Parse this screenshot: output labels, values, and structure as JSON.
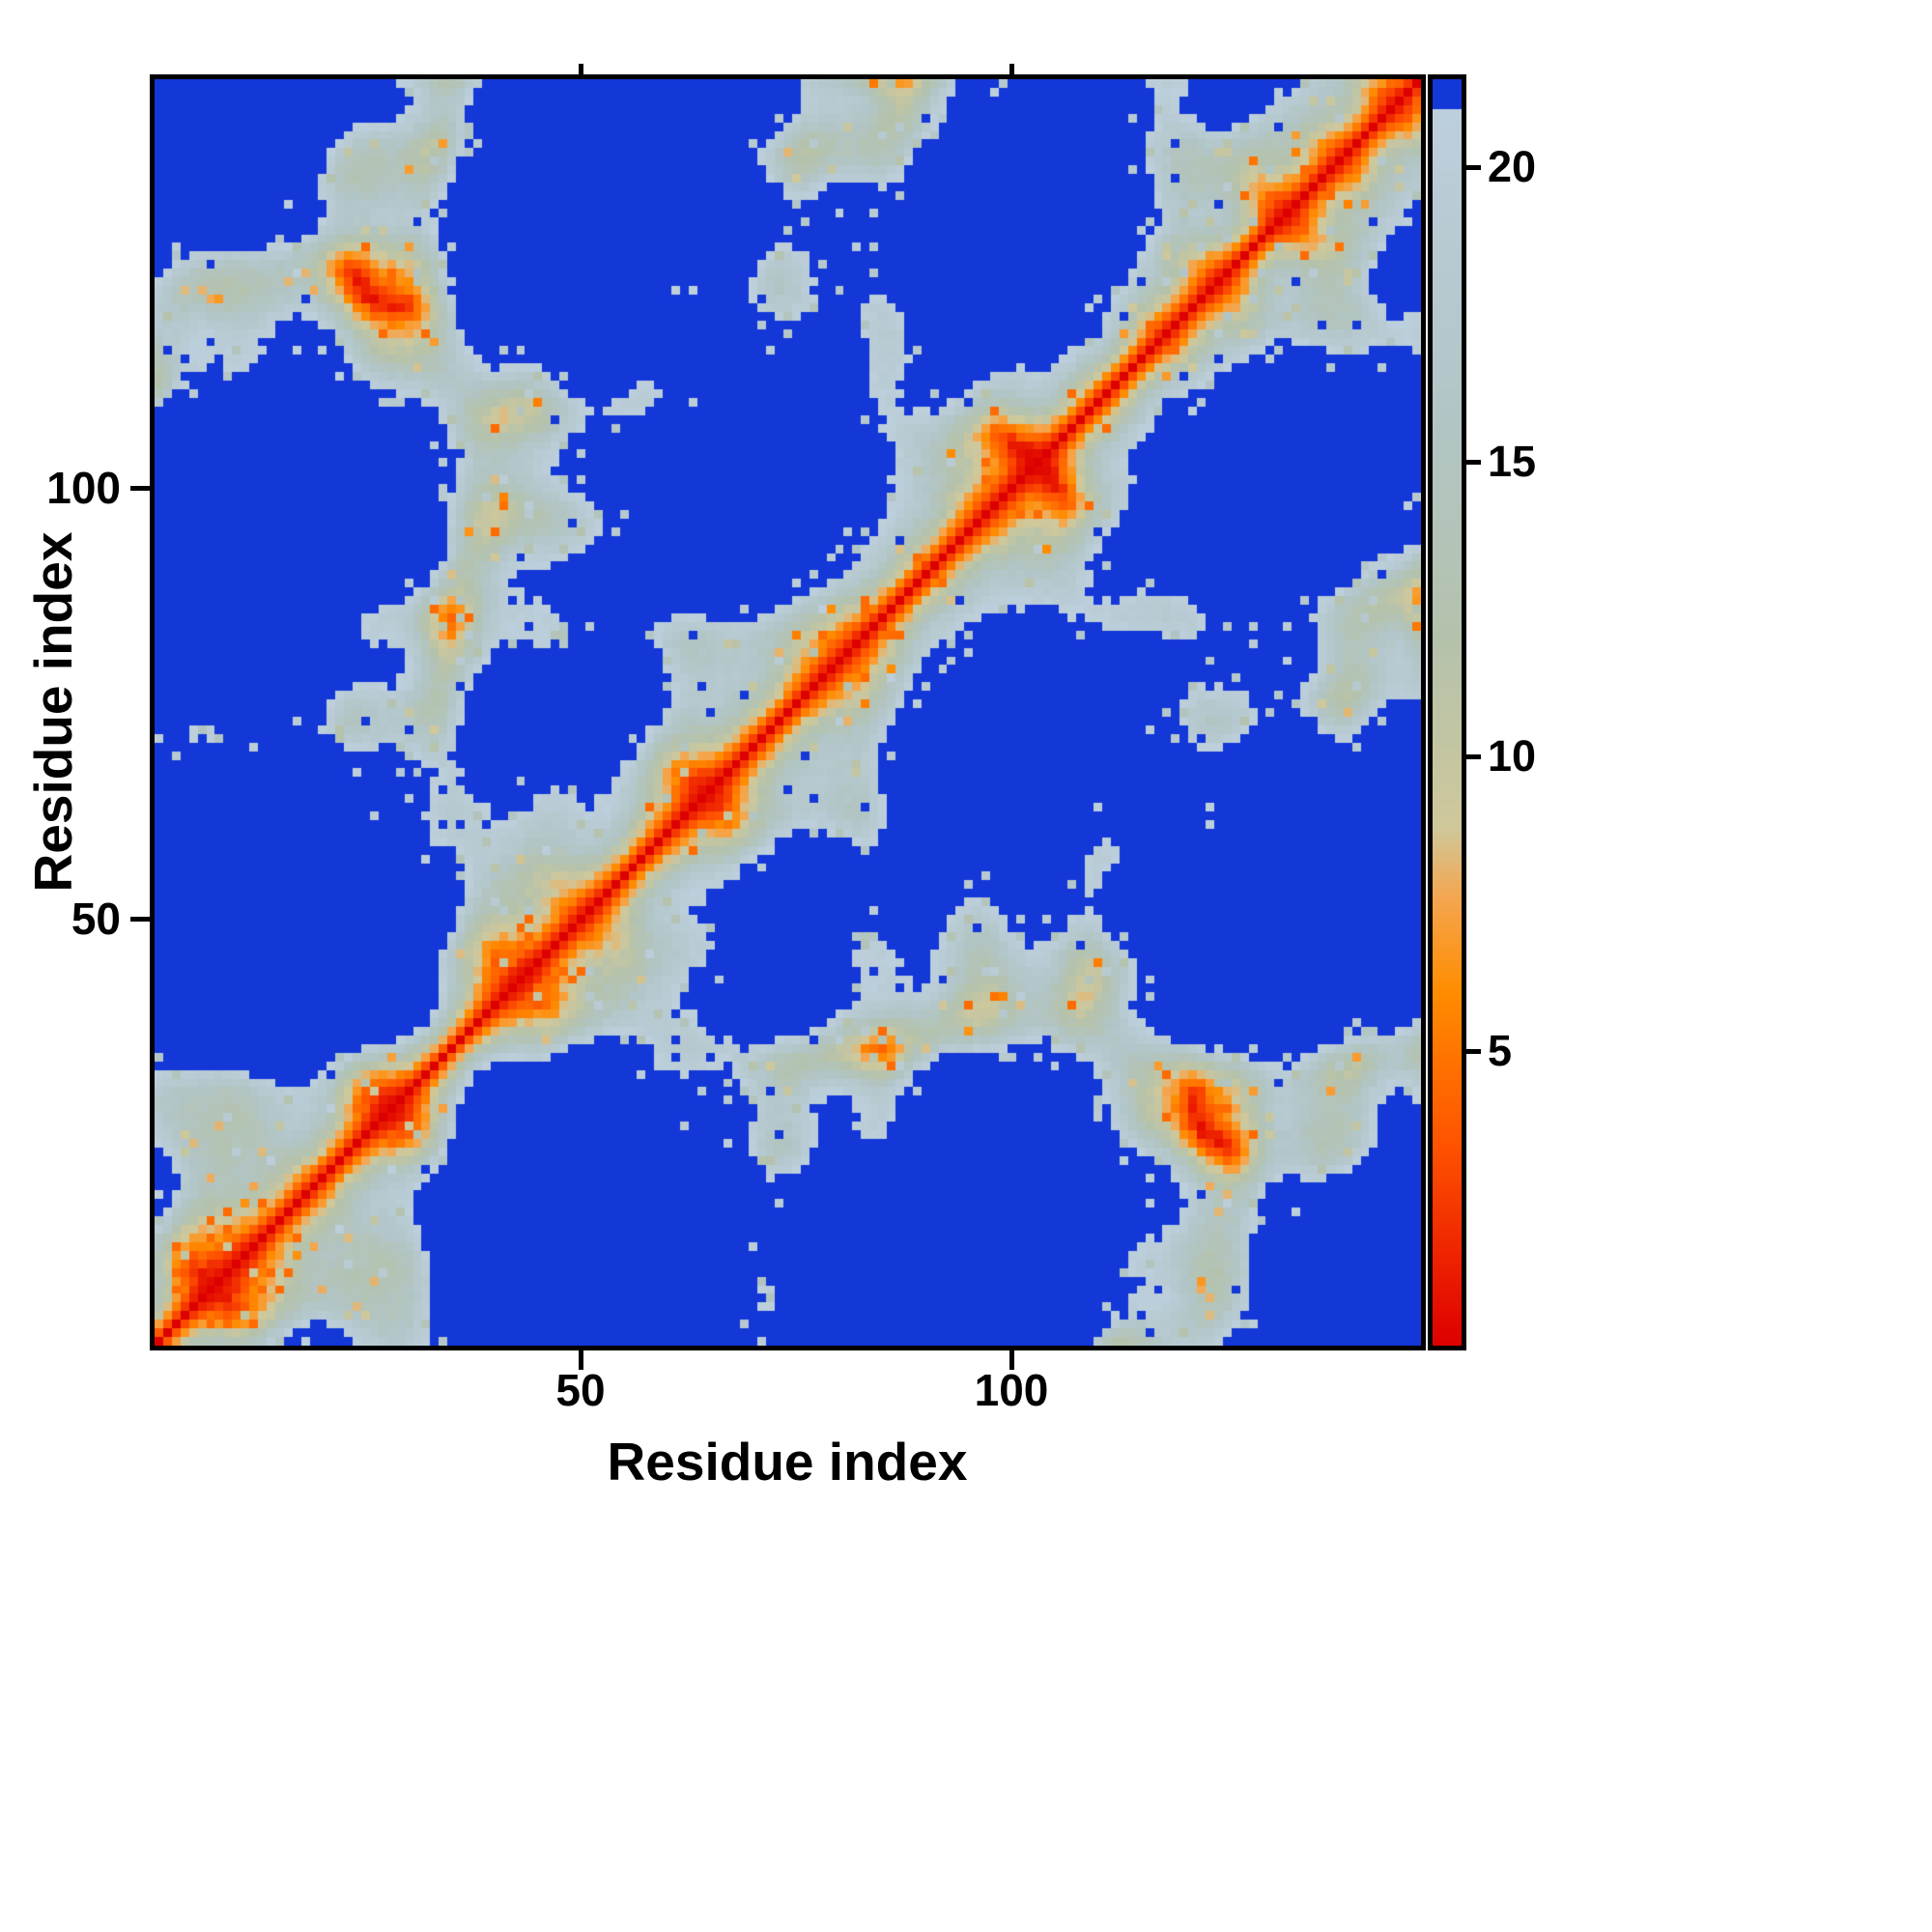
{
  "figure": {
    "background": "#ffffff"
  },
  "chart_data": {
    "type": "heatmap",
    "title": "",
    "xlabel": "Residue index",
    "ylabel": "Residue index",
    "x_tick_labels": [
      "50",
      "100"
    ],
    "x_tick_values": [
      50,
      100
    ],
    "y_tick_labels": [
      "100",
      "50"
    ],
    "y_tick_values": [
      100,
      50
    ],
    "n_residues": 147,
    "axis_range": [
      1,
      147
    ],
    "symmetric": true,
    "diagonal_value": 0,
    "grid": false,
    "legend_position": "right-colorbar",
    "colorbar": {
      "tick_labels": [
        "20",
        "15",
        "10",
        "5"
      ],
      "tick_values": [
        20,
        15,
        10,
        5
      ],
      "vmin": 0,
      "vmax": 21.5,
      "clip_above": 21.0,
      "clip_color": "#1437d8",
      "stops": [
        [
          0.0,
          "#dd0000"
        ],
        [
          1.5,
          "#ee2200"
        ],
        [
          3.5,
          "#ff5500"
        ],
        [
          6.0,
          "#ff8c00"
        ],
        [
          7.6,
          "#f4a64f"
        ],
        [
          8.8,
          "#cfc89b"
        ],
        [
          12.0,
          "#b4c2ac"
        ],
        [
          16.0,
          "#b2c5c7"
        ],
        [
          21.0,
          "#bccfdc"
        ]
      ]
    },
    "matrix_model": {
      "description": "symmetric residue-residue distance matrix, red diagonal (0) with quasi-periodic off-diagonal contact blobs; values above clip shown blue",
      "seed": 42,
      "noise_amplitude": 1.6,
      "low_spike_probability": 0.045,
      "low_spike_delta": -6,
      "low_spike_floor": 4.5,
      "high_spike_probability": 0.025,
      "high_spike_delta": 6,
      "axes_terms": [
        [
          [
            14.0,
            0.115,
            0.0,
            "sin"
          ],
          [
            9.5,
            0.031,
            1.7,
            "sin"
          ],
          [
            3.0,
            0.47,
            0.0,
            "sin"
          ]
        ],
        [
          [
            14.0,
            0.115,
            0.6,
            "cos"
          ],
          [
            9.5,
            0.027,
            0.0,
            "sin"
          ],
          [
            3.0,
            0.45,
            1.1,
            "cos"
          ]
        ],
        [
          [
            11.0,
            0.061,
            0.9,
            "sin"
          ],
          [
            7.0,
            0.017,
            2.0,
            "cos"
          ],
          [
            3.0,
            0.43,
            2.2,
            "sin"
          ]
        ]
      ]
    }
  }
}
